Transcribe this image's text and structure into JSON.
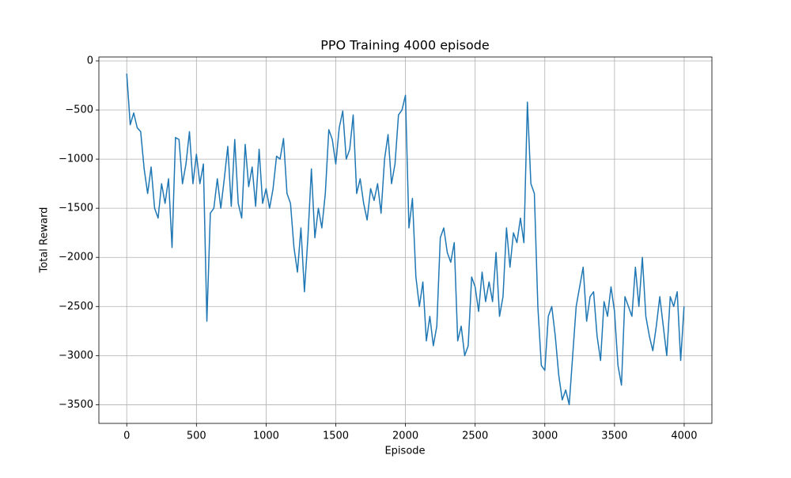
{
  "chart_data": {
    "type": "line",
    "title": "PPO Training 4000 episode",
    "x_label": "Episode",
    "y_label": "Total Reward",
    "color": "#1f77b4",
    "grid": true,
    "xlim": [
      -199.95,
      4198.95
    ],
    "ylim": [
      -3690,
      40
    ],
    "xticks": [
      0,
      500,
      1000,
      1500,
      2000,
      2500,
      3000,
      3500,
      4000
    ],
    "yticks": [
      0,
      {
        "value": -500,
        "label": "−500"
      },
      {
        "value": -1000,
        "label": "−1000"
      },
      {
        "value": -1500,
        "label": "−1500"
      },
      {
        "value": -2000,
        "label": "−2000"
      },
      {
        "value": -2500,
        "label": "−2500"
      },
      {
        "value": -3000,
        "label": "−3000"
      },
      {
        "value": -3500,
        "label": "−3500"
      }
    ],
    "x": [
      0,
      25,
      50,
      75,
      100,
      125,
      150,
      175,
      200,
      225,
      250,
      275,
      300,
      325,
      350,
      375,
      400,
      425,
      450,
      475,
      500,
      525,
      550,
      575,
      600,
      625,
      650,
      675,
      700,
      725,
      750,
      775,
      800,
      825,
      850,
      875,
      900,
      925,
      950,
      975,
      1000,
      1025,
      1050,
      1075,
      1100,
      1125,
      1150,
      1175,
      1200,
      1225,
      1250,
      1275,
      1300,
      1325,
      1350,
      1375,
      1400,
      1425,
      1450,
      1475,
      1500,
      1525,
      1550,
      1575,
      1600,
      1625,
      1650,
      1675,
      1700,
      1725,
      1750,
      1775,
      1800,
      1825,
      1850,
      1875,
      1900,
      1925,
      1950,
      1975,
      2000,
      2025,
      2050,
      2075,
      2100,
      2125,
      2150,
      2175,
      2200,
      2225,
      2250,
      2275,
      2300,
      2325,
      2350,
      2375,
      2400,
      2425,
      2450,
      2475,
      2500,
      2525,
      2550,
      2575,
      2600,
      2625,
      2650,
      2675,
      2700,
      2725,
      2750,
      2775,
      2800,
      2825,
      2850,
      2875,
      2900,
      2925,
      2950,
      2975,
      3000,
      3025,
      3050,
      3075,
      3100,
      3125,
      3150,
      3175,
      3200,
      3225,
      3250,
      3275,
      3300,
      3325,
      3350,
      3375,
      3400,
      3425,
      3450,
      3475,
      3500,
      3525,
      3550,
      3575,
      3600,
      3625,
      3650,
      3675,
      3700,
      3725,
      3750,
      3775,
      3800,
      3825,
      3850,
      3875,
      3900,
      3925,
      3950,
      3975,
      3999
    ],
    "values": [
      -130,
      -650,
      -530,
      -680,
      -720,
      -1100,
      -1350,
      -1080,
      -1500,
      -1600,
      -1250,
      -1450,
      -1200,
      -1900,
      -780,
      -800,
      -1250,
      -1050,
      -720,
      -1250,
      -950,
      -1250,
      -1050,
      -2650,
      -1550,
      -1500,
      -1200,
      -1500,
      -1200,
      -870,
      -1480,
      -800,
      -1450,
      -1600,
      -850,
      -1280,
      -1080,
      -1480,
      -900,
      -1450,
      -1300,
      -1500,
      -1300,
      -970,
      -1000,
      -790,
      -1350,
      -1450,
      -1900,
      -2150,
      -1700,
      -2350,
      -1800,
      -1100,
      -1800,
      -1500,
      -1700,
      -1350,
      -700,
      -800,
      -1050,
      -680,
      -510,
      -1000,
      -900,
      -550,
      -1350,
      -1200,
      -1450,
      -1620,
      -1300,
      -1420,
      -1250,
      -1550,
      -1000,
      -750,
      -1250,
      -1050,
      -550,
      -500,
      -350,
      -1700,
      -1400,
      -2200,
      -2500,
      -2250,
      -2850,
      -2600,
      -2900,
      -2700,
      -1800,
      -1700,
      -1950,
      -2050,
      -1850,
      -2850,
      -2700,
      -3000,
      -2900,
      -2200,
      -2300,
      -2550,
      -2150,
      -2450,
      -2250,
      -2450,
      -1950,
      -2600,
      -2400,
      -1700,
      -2100,
      -1750,
      -1850,
      -1600,
      -1850,
      -420,
      -1250,
      -1350,
      -2500,
      -3100,
      -3150,
      -2600,
      -2500,
      -2800,
      -3200,
      -3450,
      -3350,
      -3500,
      -3000,
      -2500,
      -2300,
      -2100,
      -2650,
      -2400,
      -2350,
      -2800,
      -3050,
      -2450,
      -2600,
      -2300,
      -2550,
      -3100,
      -3300,
      -2400,
      -2500,
      -2600,
      -2100,
      -2500,
      -2000,
      -2600,
      -2800,
      -2950,
      -2700,
      -2400,
      -2700,
      -3000,
      -2400,
      -2500,
      -2350,
      -3050,
      -2500
    ]
  }
}
